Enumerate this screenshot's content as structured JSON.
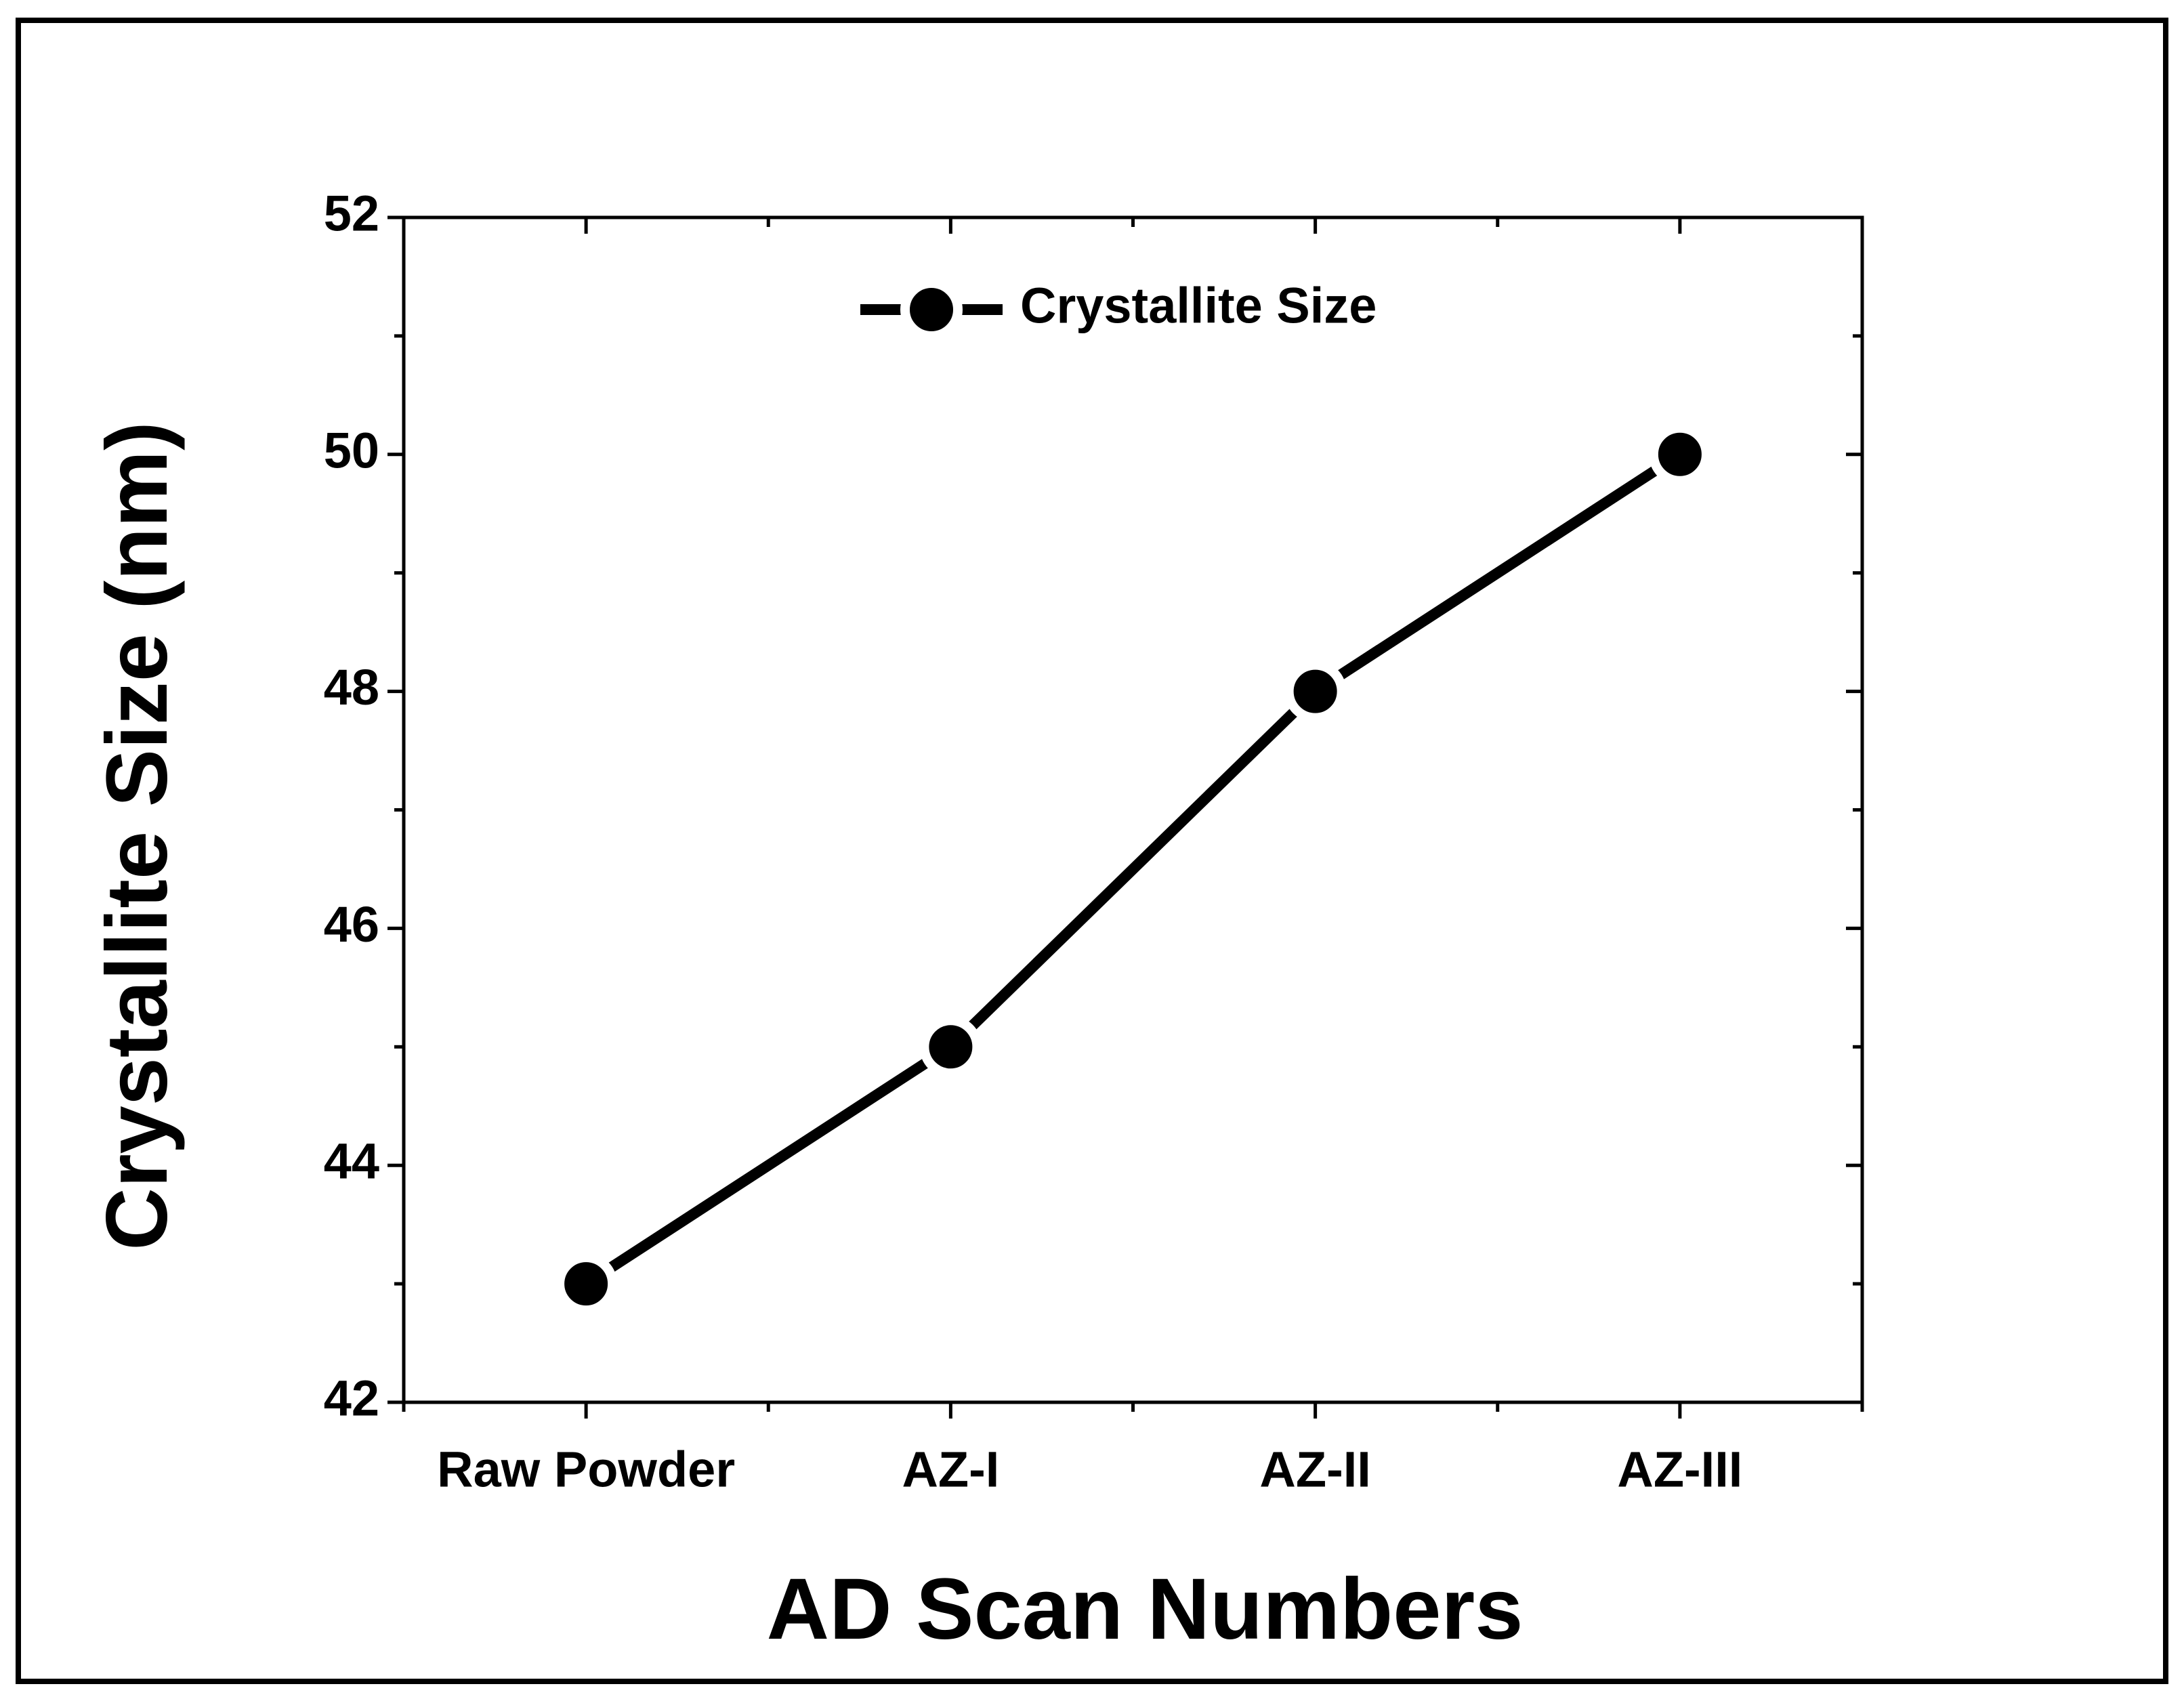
{
  "chart_data": {
    "type": "line",
    "x_label": "AD Scan Numbers",
    "y_label": "Crystallite Size (nm)",
    "categories": [
      "Raw Powder",
      "AZ-I",
      "AZ-II",
      "AZ-III"
    ],
    "series": [
      {
        "name": "Crystallite Size",
        "color": "#000000",
        "values": [
          43,
          45,
          48,
          50
        ]
      }
    ],
    "ylim": [
      42,
      52
    ],
    "yticks": [
      42,
      44,
      46,
      48,
      50,
      52
    ],
    "grid": false,
    "legend": "top"
  }
}
